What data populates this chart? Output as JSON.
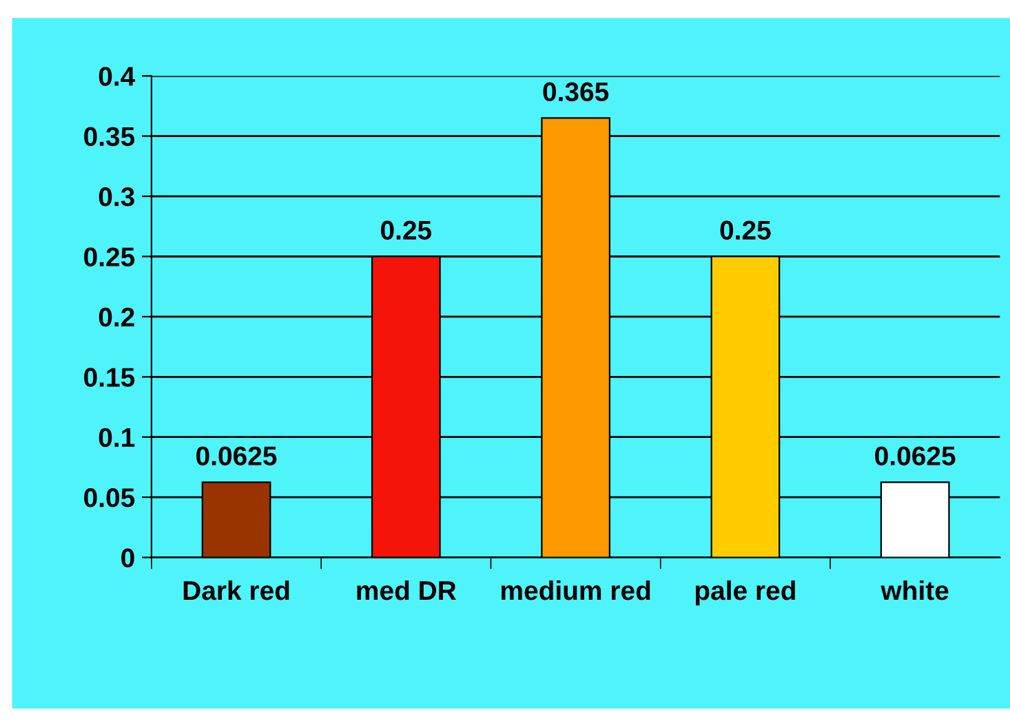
{
  "chart_data": {
    "type": "bar",
    "categories": [
      "Dark red",
      "med DR",
      "medium red",
      "pale red",
      "white"
    ],
    "values": [
      0.0625,
      0.25,
      0.365,
      0.25,
      0.0625
    ],
    "colors": [
      "#993300",
      "#f5140a",
      "#ff9900",
      "#ffcc00",
      "#ffffff"
    ],
    "ylim": [
      0,
      0.4
    ],
    "yticks": [
      0,
      0.05,
      0.1,
      0.15,
      0.2,
      0.25,
      0.3,
      0.35,
      0.4
    ],
    "grid": "y",
    "data_labels": true,
    "legend": false
  }
}
